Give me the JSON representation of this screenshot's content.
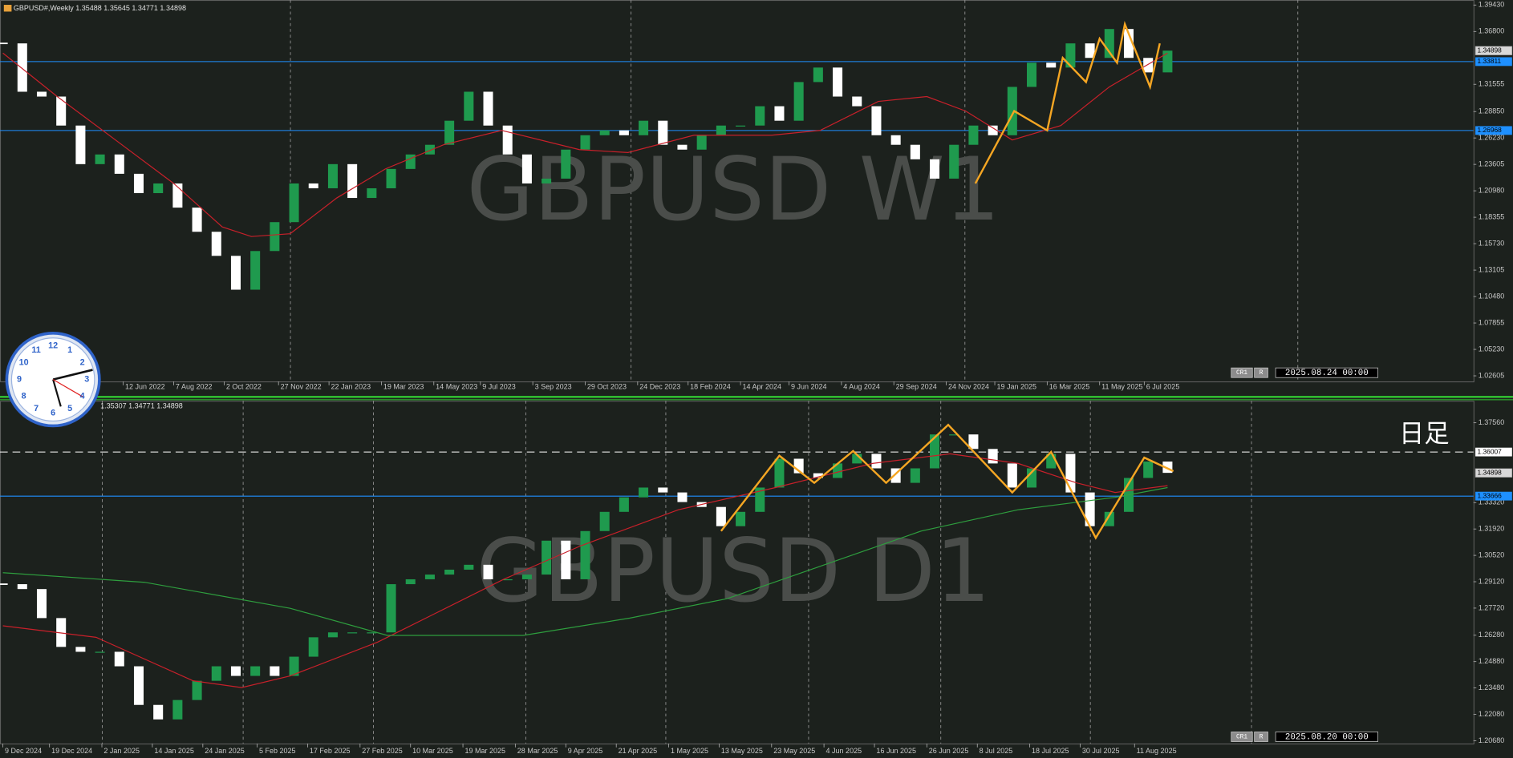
{
  "clock": {
    "numbers": [
      "12",
      "1",
      "2",
      "3",
      "4",
      "5",
      "6",
      "7",
      "8",
      "9",
      "10",
      "11"
    ]
  },
  "chart_data": [
    {
      "type": "candlestick",
      "title": "GBPUSD#,Weekly  1.35488 1.35645 1.34771 1.34898",
      "watermark": "GBPUSD W1",
      "up_color": "#1f9a4e",
      "down_color": "#ffffff",
      "values": [
        1.3562,
        1.3082,
        1.3034,
        1.2746,
        1.2363,
        1.2459,
        1.2267,
        1.2075,
        1.2171,
        1.1931,
        1.1691,
        1.1452,
        1.1116,
        1.15,
        1.1787,
        1.2171,
        1.2123,
        1.2363,
        1.2027,
        1.2123,
        1.2315,
        1.2459,
        1.2555,
        1.2794,
        1.3082,
        1.2746,
        1.2459,
        1.2171,
        1.2219,
        1.2507,
        1.265,
        1.2698,
        1.265,
        1.2794,
        1.2555,
        1.2507,
        1.265,
        1.2746,
        1.2746,
        1.2938,
        1.2794,
        1.3178,
        1.3322,
        1.3034,
        1.2938,
        1.265,
        1.2555,
        1.2411,
        1.2219,
        1.2555,
        1.2746,
        1.265,
        1.313,
        1.337,
        1.3322,
        1.3562,
        1.3418,
        1.3705,
        1.3418,
        1.3274,
        1.349
      ],
      "xticks": [
        {
          "value": 6.2,
          "label": "12 Jun 2022"
        },
        {
          "value": 8.8,
          "label": "7 Aug 2022"
        },
        {
          "value": 11.4,
          "label": "2 Oct 2022"
        },
        {
          "value": 14.2,
          "label": "27 Nov 2022"
        },
        {
          "value": 16.8,
          "label": "22 Jan 2023"
        },
        {
          "value": 19.5,
          "label": "19 Mar 2023"
        },
        {
          "value": 22.2,
          "label": "14 May 2023"
        },
        {
          "value": 24.6,
          "label": "9 Jul 2023"
        },
        {
          "value": 27.3,
          "label": "3 Sep 2023"
        },
        {
          "value": 30.0,
          "label": "29 Oct 2023"
        },
        {
          "value": 32.7,
          "label": "24 Dec 2023"
        },
        {
          "value": 35.3,
          "label": "18 Feb 2024"
        },
        {
          "value": 38.0,
          "label": "14 Apr 2024"
        },
        {
          "value": 40.5,
          "label": "9 Jun 2024"
        },
        {
          "value": 43.2,
          "label": "4 Aug 2024"
        },
        {
          "value": 45.9,
          "label": "29 Sep 2024"
        },
        {
          "value": 48.6,
          "label": "24 Nov 2024"
        },
        {
          "value": 51.1,
          "label": "19 Jan 2025"
        },
        {
          "value": 53.8,
          "label": "16 Mar 2025"
        },
        {
          "value": 56.5,
          "label": "11 May 2025"
        },
        {
          "value": 58.8,
          "label": "6 Jul 2025"
        }
      ],
      "ylim": [
        1.0205,
        1.3993
      ],
      "yticks": [
        {
          "value": 1.3943,
          "label": "1.39430"
        },
        {
          "value": 1.368,
          "label": "1.36800"
        },
        {
          "value": 1.31555,
          "label": "1.31555"
        },
        {
          "value": 1.2885,
          "label": "1.28850"
        },
        {
          "value": 1.2623,
          "label": "1.26230"
        },
        {
          "value": 1.23605,
          "label": "1.23605"
        },
        {
          "value": 1.2098,
          "label": "1.20980"
        },
        {
          "value": 1.18355,
          "label": "1.18355"
        },
        {
          "value": 1.1573,
          "label": "1.15730"
        },
        {
          "value": 1.13105,
          "label": "1.13105"
        },
        {
          "value": 1.1048,
          "label": "1.10480"
        },
        {
          "value": 1.07855,
          "label": "1.07855"
        },
        {
          "value": 1.0523,
          "label": "1.05230"
        },
        {
          "value": 1.02605,
          "label": "1.02605"
        }
      ],
      "series": [
        {
          "color": "#c8202a",
          "x": [
            0,
            2.8,
            5.8,
            8.8,
            11.3,
            12.8,
            14.8,
            17.2,
            19.7,
            22.7,
            25.7,
            29.7,
            32.2,
            35.6,
            39.6,
            42.1,
            45.1,
            47.6,
            49.6,
            52.0,
            54.5,
            57.0,
            60
          ],
          "values": [
            1.3466,
            1.3034,
            1.2603,
            1.2171,
            1.1739,
            1.1644,
            1.1672,
            1.2027,
            1.2315,
            1.2555,
            1.2698,
            1.2507,
            1.2478,
            1.265,
            1.265,
            1.2698,
            1.2986,
            1.3034,
            1.289,
            1.2603,
            1.2746,
            1.313,
            1.3466
          ]
        },
        {
          "color": "#f5a623",
          "x": [
            50.1,
            52.1,
            53.8,
            54.6,
            55.8,
            56.5,
            57.4,
            57.8,
            59.1,
            59.6
          ],
          "values": [
            1.2171,
            1.289,
            1.2698,
            1.3418,
            1.3178,
            1.3609,
            1.337,
            1.3753,
            1.313,
            1.3562
          ]
        }
      ],
      "hlines": [
        {
          "value": 1.33811,
          "label": "1.33811",
          "color": "#1e90ff",
          "style": "solid"
        },
        {
          "value": 1.26968,
          "label": "1.26968",
          "color": "#1e90ff",
          "style": "solid"
        }
      ],
      "price_label": {
        "value": 1.34898,
        "label": "1.34898"
      },
      "footer": [
        "CR1",
        "R",
        "2025.08.24 00:00"
      ]
    },
    {
      "type": "candlestick",
      "title": "1.35307 1.34771 1.34898",
      "watermark": "GBPUSD D1",
      "note": "日足",
      "up_color": "#1f9a4e",
      "down_color": "#ffffff",
      "values": [
        1.2899,
        1.2873,
        1.2719,
        1.2566,
        1.254,
        1.254,
        1.2463,
        1.2258,
        1.2181,
        1.2284,
        1.2386,
        1.2463,
        1.2412,
        1.2463,
        1.2412,
        1.2514,
        1.2617,
        1.2643,
        1.2643,
        1.2643,
        1.2899,
        1.2925,
        1.295,
        1.2976,
        1.3002,
        1.2925,
        1.2925,
        1.295,
        1.313,
        1.2925,
        1.3181,
        1.3283,
        1.336,
        1.3412,
        1.3386,
        1.3335,
        1.3309,
        1.3207,
        1.3283,
        1.3412,
        1.3565,
        1.3488,
        1.3463,
        1.354,
        1.3591,
        1.3514,
        1.3437,
        1.3514,
        1.3694,
        1.3694,
        1.3617,
        1.354,
        1.3412,
        1.3514,
        1.3591,
        1.3386,
        1.3207,
        1.3283,
        1.3463,
        1.355,
        1.349
      ],
      "xticks": [
        {
          "value": 0,
          "label": "9 Dec 2024"
        },
        {
          "value": 2.4,
          "label": "19 Dec 2024"
        },
        {
          "value": 5.1,
          "label": "2 Jan 2025"
        },
        {
          "value": 7.7,
          "label": "14 Jan 2025"
        },
        {
          "value": 10.3,
          "label": "24 Jan 2025"
        },
        {
          "value": 13.1,
          "label": "5 Feb 2025"
        },
        {
          "value": 15.7,
          "label": "17 Feb 2025"
        },
        {
          "value": 18.4,
          "label": "27 Feb 2025"
        },
        {
          "value": 21.0,
          "label": "10 Mar 2025"
        },
        {
          "value": 23.7,
          "label": "19 Mar 2025"
        },
        {
          "value": 26.4,
          "label": "28 Mar 2025"
        },
        {
          "value": 29.0,
          "label": "9 Apr 2025"
        },
        {
          "value": 31.6,
          "label": "21 Apr 2025"
        },
        {
          "value": 34.3,
          "label": "1 May 2025"
        },
        {
          "value": 36.9,
          "label": "13 May 2025"
        },
        {
          "value": 39.6,
          "label": "23 May 2025"
        },
        {
          "value": 42.3,
          "label": "4 Jun 2025"
        },
        {
          "value": 44.9,
          "label": "16 Jun 2025"
        },
        {
          "value": 47.6,
          "label": "26 Jun 2025"
        },
        {
          "value": 50.2,
          "label": "8 Jul 2025"
        },
        {
          "value": 52.9,
          "label": "18 Jul 2025"
        },
        {
          "value": 55.5,
          "label": "30 Jul 2025"
        },
        {
          "value": 58.3,
          "label": "11 Aug 2025"
        }
      ],
      "ylim": [
        1.2053,
        1.3873
      ],
      "yticks": [
        {
          "value": 1.3756,
          "label": "1.37560"
        },
        {
          "value": 1.3332,
          "label": "1.33320"
        },
        {
          "value": 1.3192,
          "label": "1.31920"
        },
        {
          "value": 1.3052,
          "label": "1.30520"
        },
        {
          "value": 1.2912,
          "label": "1.29120"
        },
        {
          "value": 1.2772,
          "label": "1.27720"
        },
        {
          "value": 1.2628,
          "label": "1.26280"
        },
        {
          "value": 1.2488,
          "label": "1.24880"
        },
        {
          "value": 1.2348,
          "label": "1.23480"
        },
        {
          "value": 1.2208,
          "label": "1.22080"
        },
        {
          "value": 1.2068,
          "label": "1.20680"
        }
      ],
      "series": [
        {
          "color": "#c8202a",
          "x": [
            0,
            4.8,
            9.8,
            12.3,
            14.8,
            19.3,
            22.3,
            25.8,
            29.8,
            34.8,
            39.8,
            44.8,
            48.8,
            52.3,
            55.3,
            57.3,
            60
          ],
          "values": [
            1.2678,
            1.2617,
            1.2386,
            1.235,
            1.2412,
            1.2591,
            1.2745,
            1.2925,
            1.3104,
            1.3294,
            1.3412,
            1.354,
            1.3591,
            1.354,
            1.3437,
            1.3386,
            1.3422
          ]
        },
        {
          "color": "#2e9e3e",
          "x": [
            0,
            7.3,
            14.8,
            19.8,
            26.8,
            32.3,
            37.3,
            42.3,
            47.3,
            52.3,
            57.3,
            60
          ],
          "values": [
            1.296,
            1.2909,
            1.2771,
            1.2627,
            1.2627,
            1.2719,
            1.2822,
            1.3001,
            1.3181,
            1.3294,
            1.336,
            1.3412
          ]
        },
        {
          "color": "#f5a623",
          "x": [
            37.0,
            40.0,
            41.8,
            43.8,
            45.5,
            48.7,
            52.0,
            54.0,
            56.3,
            58.8,
            60.3
          ],
          "values": [
            1.3181,
            1.3581,
            1.3437,
            1.3606,
            1.3437,
            1.3745,
            1.3386,
            1.3601,
            1.3145,
            1.3571,
            1.3499
          ]
        }
      ],
      "hlines": [
        {
          "value": 1.36007,
          "label": "1.36007",
          "color": "#ffffff",
          "style": "dashed"
        },
        {
          "value": 1.33666,
          "label": "1.33666",
          "color": "#1e90ff",
          "style": "solid"
        }
      ],
      "price_label": {
        "value": 1.34898,
        "label": "1.34898"
      },
      "footer": [
        "CR1",
        "R",
        "2025.08.20 00:00"
      ]
    }
  ]
}
